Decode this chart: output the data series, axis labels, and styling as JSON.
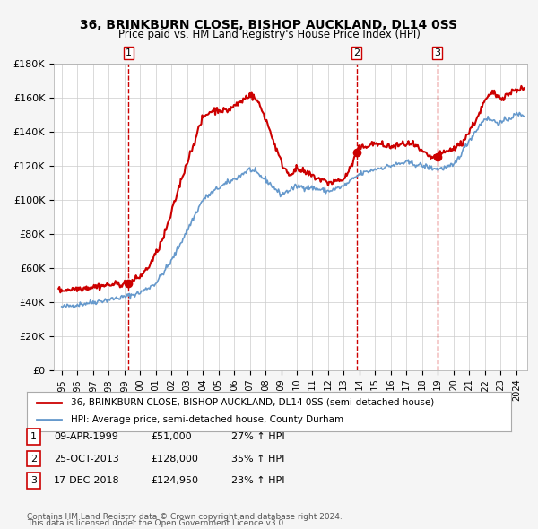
{
  "title": "36, BRINKBURN CLOSE, BISHOP AUCKLAND, DL14 0SS",
  "subtitle": "Price paid vs. HM Land Registry's House Price Index (HPI)",
  "legend_line1": "36, BRINKBURN CLOSE, BISHOP AUCKLAND, DL14 0SS (semi-detached house)",
  "legend_line2": "HPI: Average price, semi-detached house, County Durham",
  "footer1": "Contains HM Land Registry data © Crown copyright and database right 2024.",
  "footer2": "This data is licensed under the Open Government Licence v3.0.",
  "transactions": [
    {
      "num": 1,
      "date": "09-APR-1999",
      "price": "£51,000",
      "change": "27% ↑ HPI",
      "year": 1999.27
    },
    {
      "num": 2,
      "date": "25-OCT-2013",
      "price": "£128,000",
      "change": "35% ↑ HPI",
      "year": 2013.81
    },
    {
      "num": 3,
      "date": "17-DEC-2018",
      "price": "£124,950",
      "change": "23% ↑ HPI",
      "year": 2018.96
    }
  ],
  "hpi_years": [
    1995,
    1996,
    1997,
    1998,
    1999,
    2000,
    2001,
    2002,
    2003,
    2004,
    2005,
    2006,
    2007,
    2008,
    2009,
    2010,
    2011,
    2012,
    2013,
    2014,
    2015,
    2016,
    2017,
    2018,
    2019,
    2020,
    2021,
    2022,
    2023,
    2024
  ],
  "hpi_values": [
    37000,
    38500,
    40000,
    41500,
    43000,
    45500,
    51000,
    64000,
    82000,
    100000,
    107000,
    112000,
    118000,
    112000,
    103000,
    108000,
    107000,
    105000,
    108000,
    115000,
    118000,
    120000,
    122000,
    120000,
    118000,
    120000,
    135000,
    148000,
    145000,
    150000
  ],
  "price_years": [
    1995.0,
    1995.5,
    1996.0,
    1996.5,
    1997.0,
    1997.5,
    1998.0,
    1998.5,
    1999.0,
    1999.27,
    1999.5,
    2000.0,
    2000.5,
    2001.0,
    2001.5,
    2002.0,
    2002.5,
    2003.0,
    2003.5,
    2004.0,
    2004.5,
    2005.0,
    2005.5,
    2006.0,
    2006.5,
    2007.0,
    2007.5,
    2008.0,
    2008.5,
    2009.0,
    2009.5,
    2010.0,
    2010.5,
    2011.0,
    2011.5,
    2012.0,
    2012.5,
    2013.0,
    2013.5,
    2013.81,
    2014.0,
    2014.5,
    2015.0,
    2015.5,
    2016.0,
    2016.5,
    2017.0,
    2017.5,
    2018.0,
    2018.5,
    2018.96,
    2019.0,
    2019.5,
    2020.0,
    2020.5,
    2021.0,
    2021.5,
    2022.0,
    2022.5,
    2023.0,
    2023.5,
    2024.0
  ],
  "price_values": [
    47000,
    47500,
    48000,
    48500,
    49000,
    49500,
    50000,
    50500,
    51000,
    51000,
    52000,
    55000,
    60000,
    68000,
    78000,
    92000,
    108000,
    122000,
    135000,
    148000,
    152000,
    153000,
    152000,
    155000,
    158000,
    162000,
    158000,
    148000,
    135000,
    122000,
    115000,
    118000,
    116000,
    114000,
    112000,
    110000,
    111000,
    112000,
    120000,
    128000,
    130000,
    132000,
    133000,
    132000,
    131000,
    132000,
    133000,
    132000,
    128000,
    125000,
    124950,
    126000,
    128000,
    130000,
    133000,
    140000,
    148000,
    158000,
    163000,
    160000,
    162000,
    165000
  ],
  "ylim": [
    0,
    180000
  ],
  "xlim_min": 1994.5,
  "xlim_max": 2024.7,
  "hpi_color": "#6699cc",
  "price_color": "#cc0000",
  "vline_color": "#cc0000",
  "background_color": "#f5f5f5",
  "plot_bg": "#ffffff",
  "grid_color": "#cccccc"
}
